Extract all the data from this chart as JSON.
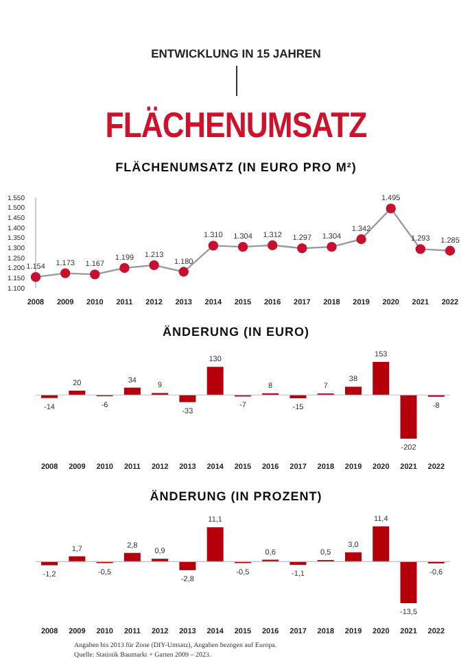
{
  "chart_data": [
    {
      "type": "line",
      "title": "FLÄCHENUMSATZ",
      "subtitle": "FLÄCHENUMSATZ (IN EURO PRO M²)",
      "annotations": [
        "ENTWICKLUNG IN 15 JAHREN"
      ],
      "categories": [
        "2008",
        "2009",
        "2010",
        "2011",
        "2012",
        "2013",
        "2014",
        "2015",
        "2016",
        "2017",
        "2018",
        "2019",
        "2020",
        "2021",
        "2022"
      ],
      "series": [
        {
          "color": "#c8102e",
          "values": [
            1154,
            1173,
            1167,
            1199,
            1213,
            1180,
            1310,
            1304,
            1312,
            1297,
            1304,
            1342,
            1495,
            1293,
            1285
          ],
          "value_labels": [
            "1.154",
            "1.173",
            "1.167",
            "1.199",
            "1.213",
            "1.180",
            "1.310",
            "1.304",
            "1.312",
            "1.297",
            "1.304",
            "1.342",
            "1.495",
            "1.293",
            "1.285"
          ]
        }
      ],
      "ylim": [
        1100,
        1550
      ],
      "yticks": [
        {
          "value": 1100,
          "label": "1.100"
        },
        {
          "value": 1150,
          "label": "1.150"
        },
        {
          "value": 1200,
          "label": "1.200"
        },
        {
          "value": 1250,
          "label": "1.250"
        },
        {
          "value": 1300,
          "label": "1.300"
        },
        {
          "value": 1350,
          "label": "1.350"
        },
        {
          "value": 1400,
          "label": "1.400"
        },
        {
          "value": 1450,
          "label": "1.450"
        },
        {
          "value": 1500,
          "label": "1.500"
        },
        {
          "value": 1550,
          "label": "1.550"
        }
      ],
      "marker": "circle",
      "line_style": "solid",
      "grid": false,
      "legend": false
    },
    {
      "type": "bar",
      "title": "ÄNDERUNG (IN EURO)",
      "categories": [
        "2008",
        "2009",
        "2010",
        "2011",
        "2012",
        "2013",
        "2014",
        "2015",
        "2016",
        "2017",
        "2018",
        "2019",
        "2020",
        "2021",
        "2022"
      ],
      "series": [
        {
          "color": "#b5000b",
          "values": [
            -14,
            20,
            -6,
            34,
            9,
            -33,
            130,
            -7,
            8,
            -15,
            7,
            38,
            153,
            -202,
            -8
          ],
          "value_labels": [
            "-14",
            "20",
            "-6",
            "34",
            "9",
            "-33",
            "130",
            "-7",
            "8",
            "-15",
            "7",
            "38",
            "153",
            "-202",
            "-8"
          ]
        }
      ],
      "grid": false,
      "legend": false
    },
    {
      "type": "bar",
      "title": "ÄNDERUNG (IN PROZENT)",
      "categories": [
        "2008",
        "2009",
        "2010",
        "2011",
        "2012",
        "2013",
        "2014",
        "2015",
        "2016",
        "2017",
        "2018",
        "2019",
        "2020",
        "2021",
        "2022"
      ],
      "series": [
        {
          "color": "#b5000b",
          "values": [
            -1.2,
            1.7,
            -0.5,
            2.8,
            0.9,
            -2.8,
            11.1,
            -0.5,
            0.6,
            -1.1,
            0.5,
            3.0,
            11.4,
            -13.5,
            -0.6
          ],
          "value_labels": [
            "-1,2",
            "1,7",
            "-0,5",
            "2,8",
            "0,9",
            "-2,8",
            "11,1",
            "-0,5",
            "0,6",
            "-1,1",
            "0,5",
            "3,0",
            "11,4",
            "-13,5",
            "-0,6"
          ]
        }
      ],
      "annotations": [
        "Angaben bis 2013 für Zone (DIY-Umsatz), Angaben bezogen auf Europa.",
        "Quelle: Statistik Baumarkt + Garten 2009 – 2023."
      ],
      "grid": false,
      "legend": false
    }
  ]
}
